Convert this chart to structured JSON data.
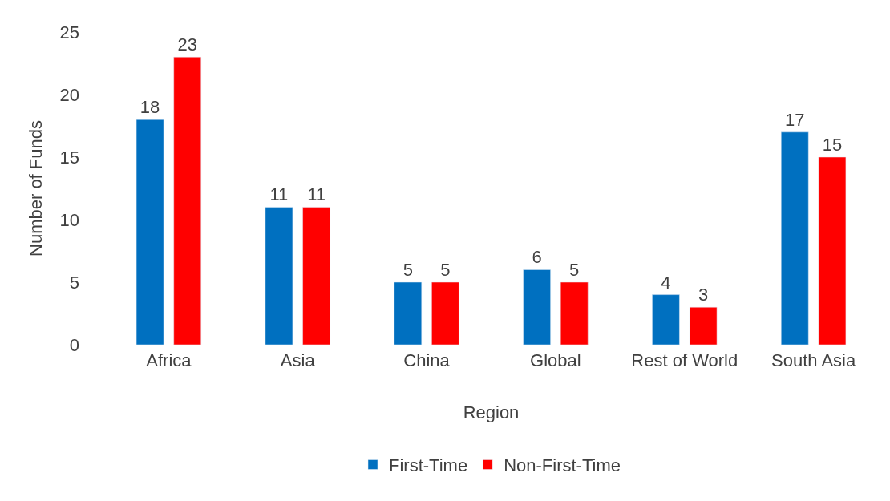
{
  "chart_data": {
    "type": "bar",
    "xlabel": "Region",
    "ylabel": "Number of Funds",
    "categories": [
      "Africa",
      "Asia",
      "China",
      "Global",
      "Rest of World",
      "South Asia"
    ],
    "series": [
      {
        "name": "First-Time",
        "color": "#0070c0",
        "values": [
          18,
          11,
          5,
          6,
          4,
          17
        ]
      },
      {
        "name": "Non-First-Time",
        "color": "#ff0000",
        "values": [
          23,
          11,
          5,
          5,
          3,
          15
        ]
      }
    ],
    "ylim": [
      0,
      25
    ],
    "yticks": [
      0,
      5,
      10,
      15,
      20,
      25
    ],
    "data_labels": true,
    "legend": "bottom",
    "grid": false
  }
}
